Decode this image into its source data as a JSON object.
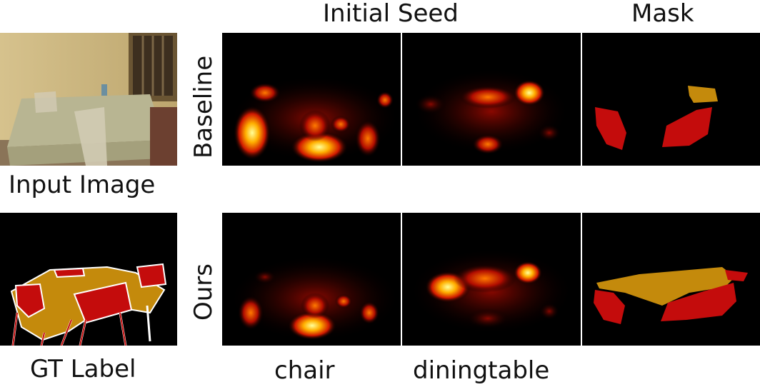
{
  "headers": {
    "initial_seed": "Initial Seed",
    "mask": "Mask"
  },
  "row_labels": {
    "baseline": "Baseline",
    "ours": "Ours"
  },
  "left_captions": {
    "input_image": "Input Image",
    "gt_label": "GT Label"
  },
  "column_captions": {
    "chair": "chair",
    "diningtable": "diningtable"
  },
  "colors": {
    "chair_mask": "#c40c0c",
    "table_mask": "#c48a0c",
    "heat_low": "#6a0000",
    "heat_high": "#ffff9a",
    "background": "#000000"
  }
}
